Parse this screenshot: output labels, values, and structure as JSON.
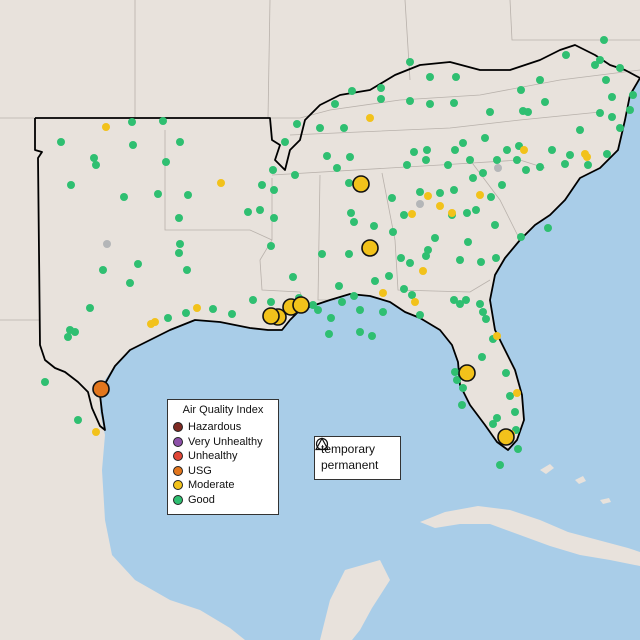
{
  "map": {
    "colors": {
      "land": "#e8e2dc",
      "water": "#a9cde8",
      "state_line": "#b8b1ab",
      "region_outline": "#000000",
      "sea_floor": "#bcd9ee"
    }
  },
  "legend": {
    "title": "Air Quality Index",
    "items": [
      {
        "label": "Hazardous",
        "color": "#7e2a22"
      },
      {
        "label": "Very Unhealthy",
        "color": "#8d50a8"
      },
      {
        "label": "Unhealthy",
        "color": "#e04636"
      },
      {
        "label": "USG",
        "color": "#e2761d"
      },
      {
        "label": "Moderate",
        "color": "#f2c21b"
      },
      {
        "label": "Good",
        "color": "#2fbf71"
      }
    ]
  },
  "site_types": {
    "items": [
      {
        "label": "temporary",
        "icon": "circle-icon"
      },
      {
        "label": "permanent",
        "icon": "triangle-icon"
      }
    ]
  },
  "monitors": {
    "large": [
      {
        "aqi": "Moderate"
      },
      {
        "aqi": "Moderate"
      },
      {
        "aqi": "Moderate"
      },
      {
        "aqi": "Moderate"
      },
      {
        "aqi": "Moderate"
      },
      {
        "aqi": "Moderate"
      },
      {
        "aqi": "Moderate"
      },
      {
        "aqi": "Moderate"
      },
      {
        "aqi": "USG"
      }
    ]
  }
}
